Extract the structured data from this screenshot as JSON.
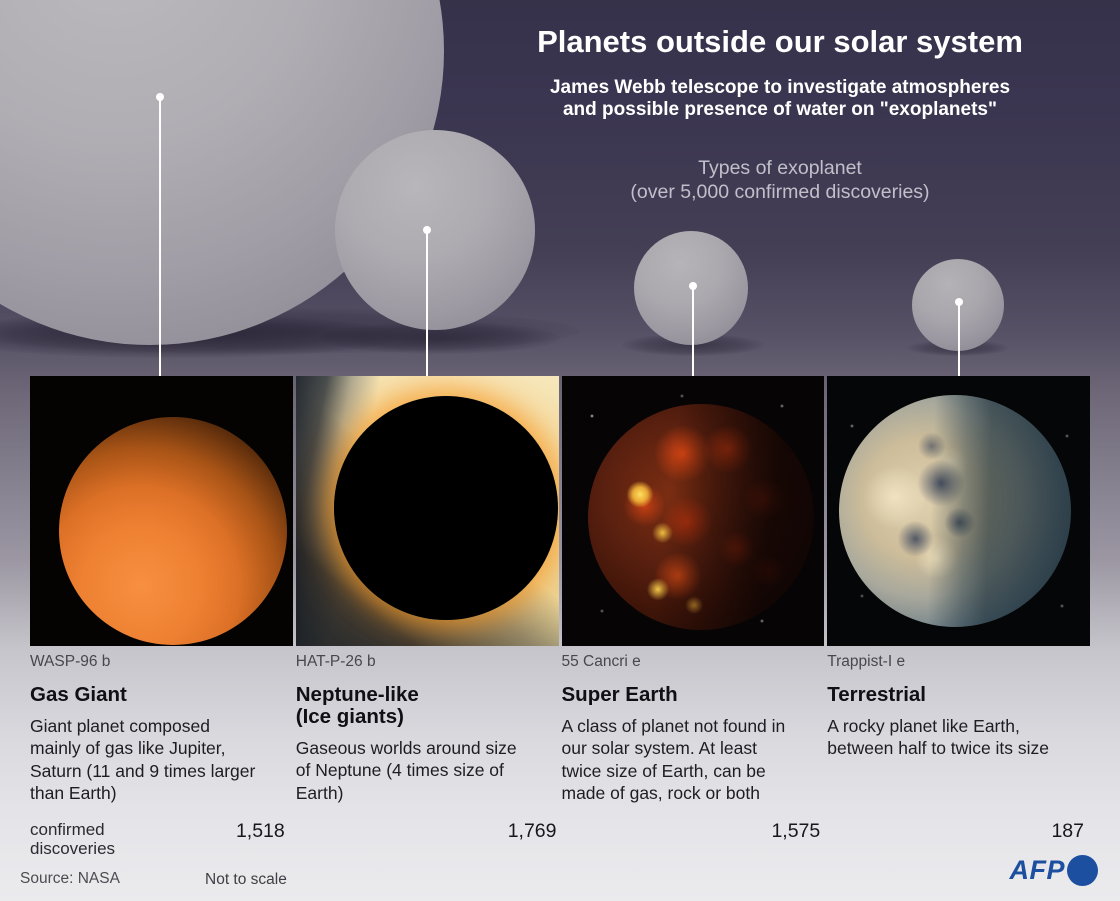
{
  "header": {
    "title": "Planets outside our solar system",
    "subtitle": "James Webb telescope to investigate atmospheres\nand possible presence of water on \"exoplanets\"",
    "types_note": "Types of exoplanet\n(over 5,000 confirmed discoveries)"
  },
  "planet_types": [
    {
      "planet_name": "WASP-96 b",
      "type_name": "Gas Giant",
      "description": "Giant planet composed mainly of gas like Jupiter, Saturn (11 and 9 times larger than Earth)",
      "confirmed": "1,518",
      "image_alt": "orange gas planet on black background"
    },
    {
      "planet_name": "HAT-P-26 b",
      "type_name": "Neptune-like\n(Ice giants)",
      "description": "Gaseous worlds around size of Neptune (4 times size of Earth)",
      "confirmed": "1,769",
      "image_alt": "dark planet silhouetted against bright star"
    },
    {
      "planet_name": "55 Cancri e",
      "type_name": "Super Earth",
      "description": "A class of planet not found in our solar system. At least twice size of Earth, can be made of gas, rock or both",
      "confirmed": "1,575",
      "image_alt": "glowing lava planet on starfield"
    },
    {
      "planet_name": "Trappist-I e",
      "type_name": "Terrestrial",
      "description": "A rocky planet like Earth, between half to twice its size",
      "confirmed": "187",
      "image_alt": "earth-like planet half in shadow"
    }
  ],
  "counts_label": "confirmed\ndiscoveries",
  "footer": {
    "source": "Source: NASA",
    "scale_note": "Not to scale",
    "agency": "AFP"
  },
  "colors": {
    "afp_blue": "#1c4f9f",
    "background_top": "#36324a",
    "background_bottom": "#ebebee",
    "sphere_gray": "#aaa7ae",
    "gas_giant_orange": "#ee8132",
    "star_cream": "#f2e2ae",
    "lava_red": "#d8411a"
  }
}
